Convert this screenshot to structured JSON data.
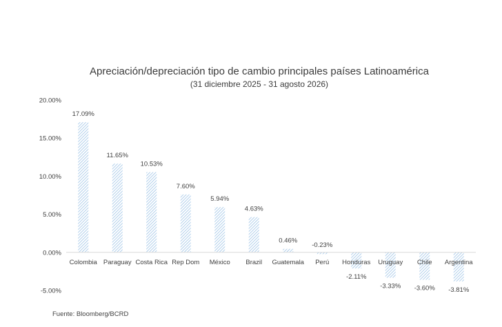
{
  "chart_data": {
    "type": "bar",
    "title": "Apreciación/depreciación tipo de cambio principales países Latinoamérica",
    "subtitle": "(31 diciembre 2025 - 31 agosto 2026)",
    "xlabel": "",
    "ylabel": "",
    "ylim": [
      -5,
      20
    ],
    "yticks": [
      20,
      15,
      10,
      5,
      0,
      -5
    ],
    "ytick_labels": [
      "20.00%",
      "15.00%",
      "10.00%",
      "5.00%",
      "0.00%",
      "-5.00%"
    ],
    "categories": [
      "Colombia",
      "Paraguay",
      "Costa Rica",
      "Rep Dom",
      "México",
      "Brazil",
      "Guatemala",
      "Perú",
      "Honduras",
      "Uruguay",
      "Chile",
      "Argentina"
    ],
    "values": [
      17.09,
      11.65,
      10.53,
      7.6,
      5.94,
      4.63,
      0.46,
      -0.23,
      -2.11,
      -3.33,
      -3.6,
      -3.81
    ],
    "data_labels": [
      "17.09%",
      "11.65%",
      "10.53%",
      "7.60%",
      "5.94%",
      "4.63%",
      "0.46%",
      "-0.23%",
      "-2.11%",
      "-3.33%",
      "-3.60%",
      "-3.81%"
    ],
    "bar_color": "#9dc3e6",
    "grid": false
  },
  "source": "Fuente: Bloomberg/BCRD"
}
